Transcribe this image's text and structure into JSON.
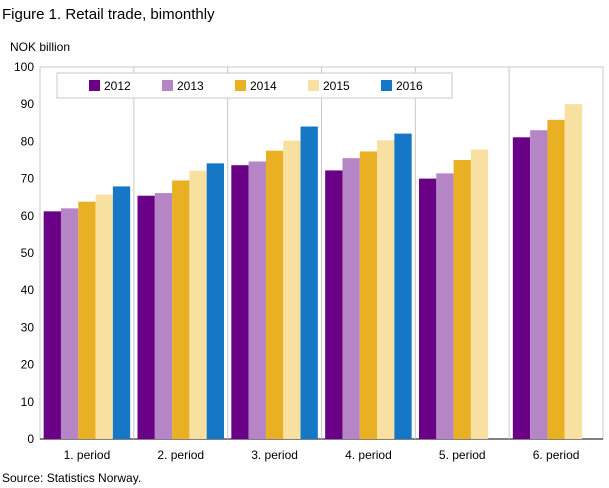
{
  "title": "Figure 1. Retail trade, bimonthly",
  "source": "Source: Statistics Norway.",
  "chart_data": {
    "type": "bar",
    "ylabel": "NOK billion",
    "ylim": [
      0,
      100
    ],
    "yticks": [
      0,
      10,
      20,
      30,
      40,
      50,
      60,
      70,
      80,
      90,
      100
    ],
    "categories": [
      "1. period",
      "2. period",
      "3. period",
      "4. period",
      "5. period",
      "6. period"
    ],
    "series": [
      {
        "name": "2012",
        "color": "#6a0085",
        "values": [
          61.2,
          65.4,
          73.6,
          72.2,
          70.0,
          81.1
        ]
      },
      {
        "name": "2013",
        "color": "#b585c6",
        "values": [
          62.0,
          66.1,
          74.6,
          75.5,
          71.4,
          83.0
        ]
      },
      {
        "name": "2014",
        "color": "#e8b022",
        "values": [
          63.8,
          69.5,
          77.5,
          77.3,
          75.0,
          85.8
        ]
      },
      {
        "name": "2015",
        "color": "#f7e0a0",
        "values": [
          65.7,
          72.1,
          80.2,
          80.3,
          77.8,
          90.0
        ]
      },
      {
        "name": "2016",
        "color": "#1777c7",
        "values": [
          67.9,
          74.1,
          84.0,
          82.1,
          null,
          null
        ]
      }
    ],
    "legend_position": "top-left",
    "grid": false
  }
}
